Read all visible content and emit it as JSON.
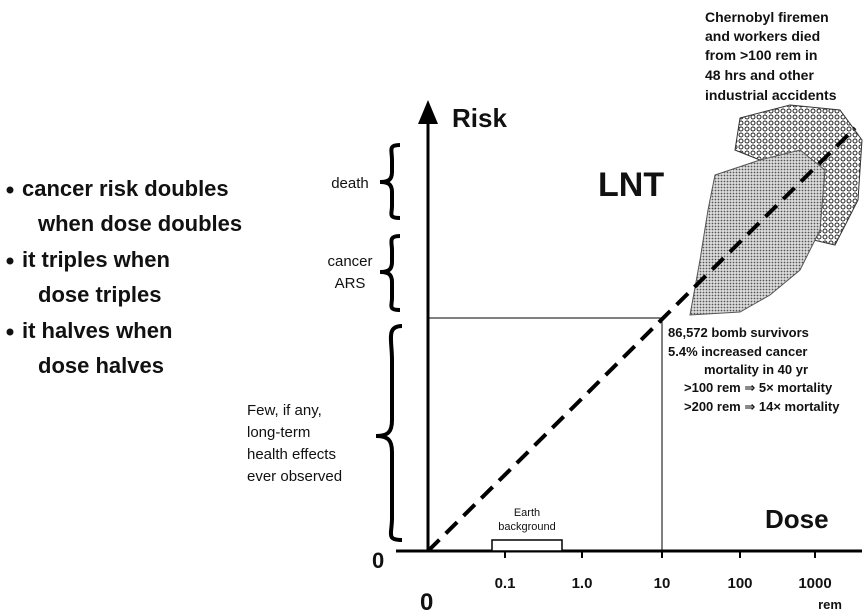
{
  "bullets": [
    {
      "lines": [
        "cancer risk doubles",
        "when dose doubles"
      ]
    },
    {
      "lines": [
        "it triples when",
        "dose triples"
      ]
    },
    {
      "lines": [
        "it halves when",
        "dose halves"
      ]
    }
  ],
  "axes": {
    "y_label": "Risk",
    "x_label": "Dose",
    "origin_y": "0",
    "origin_x": "0",
    "x_ticks": [
      "0.1",
      "1.0",
      "10",
      "100",
      "1000"
    ],
    "x_unit": "rem"
  },
  "model_label": "LNT",
  "risk_levels": [
    {
      "lines": [
        "death"
      ]
    },
    {
      "lines": [
        "cancer",
        "ARS"
      ]
    },
    {
      "lines": [
        "Few, if any,",
        "long-term",
        "health effects",
        "ever observed"
      ]
    }
  ],
  "annotations": {
    "chernobyl": [
      "Chernobyl firemen",
      "and workers died",
      "from >100 rem in",
      "48 hrs and other",
      "industrial accidents"
    ],
    "bomb_survivors": [
      "86,572 bomb survivors",
      "5.4% increased cancer",
      "mortality in 40 yr",
      ">100 rem ⇒ 5× mortality",
      ">200 rem ⇒ 14× mortality"
    ],
    "earth_background": [
      "Earth",
      "background"
    ]
  }
}
